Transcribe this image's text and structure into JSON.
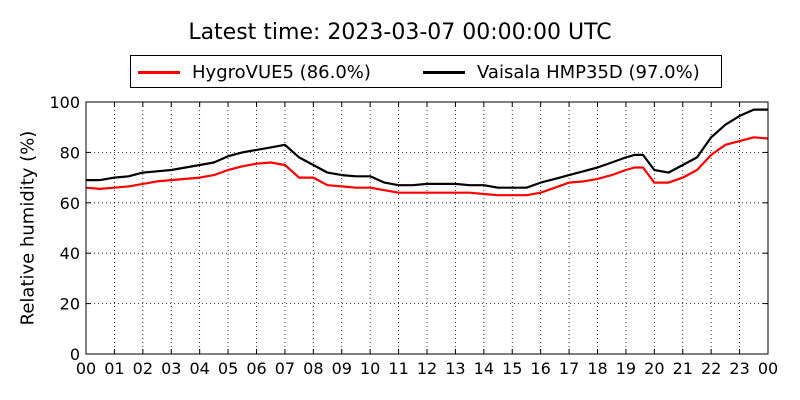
{
  "colors": {
    "hygrovue": "#ff0000",
    "vaisala": "#000000"
  },
  "chart_data": {
    "type": "line",
    "title": "Latest time: 2023-03-07 00:00:00 UTC",
    "xlabel": "",
    "ylabel": "Relative humidity (%)",
    "ylim": [
      0,
      100
    ],
    "xlim": [
      0,
      24
    ],
    "x_ticks": [
      "00",
      "01",
      "02",
      "03",
      "04",
      "05",
      "06",
      "07",
      "08",
      "09",
      "10",
      "11",
      "12",
      "13",
      "14",
      "15",
      "16",
      "17",
      "18",
      "19",
      "20",
      "21",
      "22",
      "23",
      "00"
    ],
    "y_ticks": [
      "0",
      "20",
      "40",
      "60",
      "80",
      "100"
    ],
    "grid": true,
    "legend": "top",
    "x": [
      0,
      0.5,
      1,
      1.5,
      2,
      2.5,
      3,
      3.5,
      4,
      4.5,
      5,
      5.5,
      6,
      6.5,
      7,
      7.5,
      8,
      8.5,
      9,
      9.5,
      10,
      10.5,
      11,
      11.5,
      12,
      12.5,
      13,
      13.5,
      14,
      14.5,
      15,
      15.5,
      16,
      16.5,
      17,
      17.5,
      18,
      18.5,
      19,
      19.3,
      19.6,
      20,
      20.5,
      21,
      21.5,
      22,
      22.5,
      23,
      23.5,
      24
    ],
    "series": [
      {
        "name": "HygroVUE5 (86.0%)",
        "color": "#ff0000",
        "values": [
          66,
          65.5,
          66,
          66.5,
          67.5,
          68.5,
          69,
          69.5,
          70,
          71,
          73,
          74.5,
          75.5,
          76,
          75,
          70,
          70,
          67,
          66.5,
          66,
          66,
          65,
          64,
          64,
          64,
          64,
          64,
          64,
          63.5,
          63,
          63,
          63,
          64,
          66,
          68,
          68.5,
          69.5,
          71,
          73,
          74,
          74,
          68,
          68,
          70,
          73,
          79,
          83,
          84.5,
          86,
          85.5
        ]
      },
      {
        "name": "Vaisala HMP35D (97.0%)",
        "color": "#000000",
        "values": [
          69,
          69,
          70,
          70.5,
          72,
          72.5,
          73,
          74,
          75,
          76,
          78.5,
          80,
          81,
          82,
          83,
          78,
          75,
          72,
          71,
          70.5,
          70.5,
          68,
          67,
          67,
          67.5,
          67.5,
          67.5,
          67,
          67,
          66,
          66,
          66,
          68,
          69.5,
          71,
          72.5,
          74,
          76,
          78,
          79,
          79,
          73,
          72,
          75,
          78,
          86,
          91,
          94.5,
          97,
          97
        ]
      }
    ]
  }
}
